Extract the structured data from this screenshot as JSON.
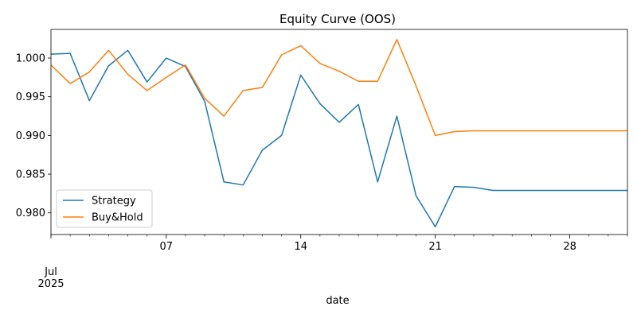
{
  "chart_data": {
    "type": "line",
    "title": "Equity Curve (OOS)",
    "xlabel": "date",
    "ylabel": "",
    "ylim": [
      0.9772,
      1.0037
    ],
    "xlim": [
      "2025-07-01",
      "2025-07-31"
    ],
    "x_ticks": [
      {
        "date": "2025-07-01",
        "label": "",
        "major": true
      },
      {
        "date": "2025-07-07",
        "label": "07",
        "major": true
      },
      {
        "date": "2025-07-14",
        "label": "14",
        "major": true
      },
      {
        "date": "2025-07-21",
        "label": "21",
        "major": true
      },
      {
        "date": "2025-07-28",
        "label": "28",
        "major": true
      }
    ],
    "x_month_label": "Jul",
    "x_year_label": "2025",
    "y_ticks": [
      "0.980",
      "0.985",
      "0.990",
      "0.995",
      "1.000"
    ],
    "grid": false,
    "legend_position": "lower-left",
    "x": [
      "2025-07-01",
      "2025-07-02",
      "2025-07-03",
      "2025-07-04",
      "2025-07-05",
      "2025-07-06",
      "2025-07-07",
      "2025-07-08",
      "2025-07-09",
      "2025-07-10",
      "2025-07-11",
      "2025-07-12",
      "2025-07-13",
      "2025-07-14",
      "2025-07-15",
      "2025-07-16",
      "2025-07-17",
      "2025-07-18",
      "2025-07-19",
      "2025-07-20",
      "2025-07-21",
      "2025-07-22",
      "2025-07-23",
      "2025-07-24",
      "2025-07-25",
      "2025-07-26",
      "2025-07-27",
      "2025-07-28",
      "2025-07-29",
      "2025-07-30",
      "2025-07-31"
    ],
    "series": [
      {
        "name": "Strategy",
        "color": "#1f77b4",
        "values": [
          1.0005,
          1.0006,
          0.9945,
          0.999,
          1.001,
          0.9969,
          1.0,
          0.9989,
          0.9944,
          0.984,
          0.9836,
          0.9881,
          0.99,
          0.9978,
          0.9941,
          0.9917,
          0.994,
          0.984,
          0.9925,
          0.9822,
          0.9782,
          0.9834,
          0.9833,
          0.9829,
          0.9829,
          0.9829,
          0.9829,
          0.9829,
          0.9829,
          0.9829,
          0.9829
        ]
      },
      {
        "name": "Buy&Hold",
        "color": "#ff7f0e",
        "values": [
          0.9991,
          0.9967,
          0.9982,
          1.001,
          0.9979,
          0.9958,
          0.9975,
          0.9991,
          0.9948,
          0.9925,
          0.9958,
          0.9962,
          1.0004,
          1.0016,
          0.9993,
          0.9983,
          0.997,
          0.997,
          1.0024,
          0.9964,
          0.99,
          0.9905,
          0.9906,
          0.9906,
          0.9906,
          0.9906,
          0.9906,
          0.9906,
          0.9906,
          0.9906,
          0.9906
        ]
      }
    ]
  }
}
